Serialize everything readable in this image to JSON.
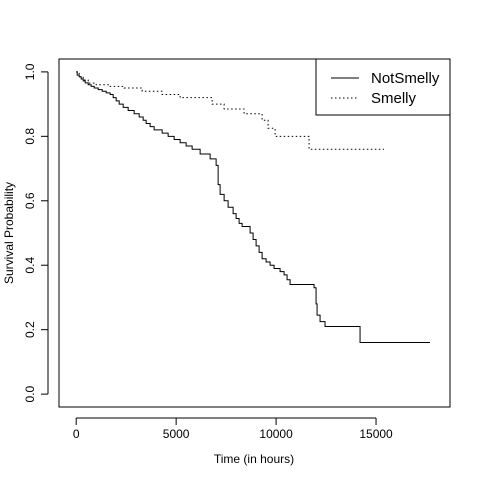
{
  "chart_data": {
    "type": "line",
    "title": "",
    "xlabel": "Time (in hours)",
    "ylabel": "Survival Probability",
    "xlim": [
      -860,
      18700
    ],
    "ylim": [
      -0.04,
      1.04
    ],
    "x_ticks": [
      0,
      5000,
      10000,
      15000
    ],
    "x_tick_labels": [
      "0",
      "5000",
      "10000",
      "15000"
    ],
    "y_ticks": [
      0.0,
      0.2,
      0.4,
      0.6,
      0.8,
      1.0
    ],
    "y_tick_labels": [
      "0.0",
      "0.2",
      "0.4",
      "0.6",
      "0.8",
      "1.0"
    ],
    "grid": false,
    "legend_position": "top-right",
    "step": true,
    "series": [
      {
        "name": "NotSmelly",
        "line_style": "solid",
        "color": "#000000",
        "points": [
          [
            0,
            1.0
          ],
          [
            50,
            0.99
          ],
          [
            150,
            0.985
          ],
          [
            250,
            0.978
          ],
          [
            350,
            0.972
          ],
          [
            450,
            0.966
          ],
          [
            600,
            0.96
          ],
          [
            750,
            0.955
          ],
          [
            900,
            0.95
          ],
          [
            1100,
            0.945
          ],
          [
            1300,
            0.94
          ],
          [
            1500,
            0.935
          ],
          [
            1700,
            0.93
          ],
          [
            1850,
            0.92
          ],
          [
            2000,
            0.91
          ],
          [
            2150,
            0.9
          ],
          [
            2350,
            0.89
          ],
          [
            2600,
            0.88
          ],
          [
            2900,
            0.87
          ],
          [
            3150,
            0.86
          ],
          [
            3350,
            0.85
          ],
          [
            3500,
            0.84
          ],
          [
            3700,
            0.83
          ],
          [
            3900,
            0.82
          ],
          [
            4300,
            0.81
          ],
          [
            4600,
            0.8
          ],
          [
            4900,
            0.79
          ],
          [
            5200,
            0.78
          ],
          [
            5500,
            0.77
          ],
          [
            5800,
            0.76
          ],
          [
            6200,
            0.745
          ],
          [
            6700,
            0.73
          ],
          [
            7000,
            0.71
          ],
          [
            7100,
            0.65
          ],
          [
            7200,
            0.62
          ],
          [
            7400,
            0.6
          ],
          [
            7600,
            0.58
          ],
          [
            7850,
            0.56
          ],
          [
            8000,
            0.545
          ],
          [
            8150,
            0.53
          ],
          [
            8300,
            0.52
          ],
          [
            8700,
            0.5
          ],
          [
            8850,
            0.48
          ],
          [
            9000,
            0.46
          ],
          [
            9150,
            0.44
          ],
          [
            9300,
            0.42
          ],
          [
            9500,
            0.41
          ],
          [
            9700,
            0.4
          ],
          [
            9900,
            0.39
          ],
          [
            10200,
            0.38
          ],
          [
            10400,
            0.37
          ],
          [
            10550,
            0.355
          ],
          [
            10700,
            0.34
          ],
          [
            11900,
            0.33
          ],
          [
            12000,
            0.28
          ],
          [
            12050,
            0.245
          ],
          [
            12200,
            0.225
          ],
          [
            12450,
            0.21
          ],
          [
            14200,
            0.16
          ],
          [
            17700,
            0.16
          ]
        ]
      },
      {
        "name": "Smelly",
        "line_style": "dotted",
        "color": "#000000",
        "points": [
          [
            0,
            1.0
          ],
          [
            150,
            0.985
          ],
          [
            350,
            0.975
          ],
          [
            600,
            0.965
          ],
          [
            1000,
            0.96
          ],
          [
            1700,
            0.955
          ],
          [
            2400,
            0.95
          ],
          [
            3300,
            0.94
          ],
          [
            4300,
            0.93
          ],
          [
            5200,
            0.92
          ],
          [
            6800,
            0.9
          ],
          [
            7400,
            0.885
          ],
          [
            8400,
            0.87
          ],
          [
            9300,
            0.85
          ],
          [
            9600,
            0.825
          ],
          [
            9950,
            0.8
          ],
          [
            11650,
            0.76
          ],
          [
            15400,
            0.76
          ]
        ]
      }
    ]
  }
}
